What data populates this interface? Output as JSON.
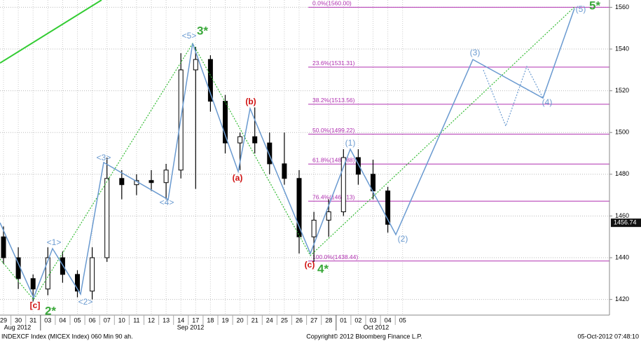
{
  "chart_data": {
    "type": "candlestick",
    "categories": [
      "29",
      "30",
      "31",
      "03",
      "04",
      "05",
      "06",
      "07",
      "10",
      "11",
      "12",
      "13",
      "14",
      "17",
      "18",
      "19",
      "20",
      "21",
      "24",
      "25",
      "26",
      "27",
      "28",
      "01",
      "02",
      "03",
      "04",
      "05"
    ],
    "open": [
      1450,
      1440,
      1430,
      1425,
      1440,
      1432,
      1424,
      1440,
      1478,
      1475,
      1477,
      1476,
      1482,
      1530,
      1535,
      1515,
      1495,
      1498,
      1495,
      1485,
      1478,
      1450,
      1458,
      1462,
      1488,
      1480,
      1472,
      null
    ],
    "high": [
      1455,
      1445,
      1432,
      1445,
      1443,
      1434,
      1445,
      1488,
      1482,
      1480,
      1482,
      1485,
      1538,
      1541,
      1537,
      1518,
      1500,
      1512,
      1500,
      1500,
      1482,
      1462,
      1468,
      1492,
      1492,
      1487,
      1474,
      null
    ],
    "low": [
      1437,
      1425,
      1419,
      1422,
      1428,
      1421,
      1420,
      1438,
      1468,
      1470,
      1472,
      1468,
      1478,
      1473,
      1510,
      1490,
      1482,
      1490,
      1480,
      1475,
      1442,
      1438,
      1450,
      1460,
      1475,
      1468,
      1452,
      null
    ],
    "close": [
      1440,
      1430,
      1425,
      1440,
      1432,
      1424,
      1440,
      1478,
      1475,
      1477,
      1476,
      1482,
      1530,
      1535,
      1515,
      1495,
      1498,
      1495,
      1485,
      1478,
      1450,
      1458,
      1462,
      1488,
      1480,
      1472,
      1456,
      null
    ],
    "color": "#000000",
    "ylim": [
      1412.5,
      1563.5
    ],
    "yticks": [
      1420,
      1440,
      1460,
      1480,
      1500,
      1520,
      1540,
      1560
    ],
    "grid": true,
    "last_price": 1456.74,
    "months": [
      "Aug 2012",
      "Sep 2012",
      "Oct 2012"
    ],
    "fib_color": "#b030b0",
    "fib_levels": [
      {
        "value": 1560,
        "label": "0.0%(1560.00)"
      },
      {
        "value": 1531.31,
        "label": "23.6%(1531.31)"
      },
      {
        "value": 1513.56,
        "label": "38.2%(1513.56)"
      },
      {
        "value": 1499.22,
        "label": "50.0%(1499.22)"
      },
      {
        "value": 1484.88,
        "label": "61.8%(1484.88)"
      },
      {
        "value": 1467.13,
        "label": "76.4%(1467.13)"
      },
      {
        "value": 1438.44,
        "label": "100.0%(1438.44)"
      }
    ],
    "annotations": [
      "[c]",
      "2*",
      "<1>",
      "<2>",
      "<3>",
      "<4>",
      "<5>",
      "3*",
      "(b)",
      "(a)",
      "(c)",
      "4*",
      "(1)",
      "(2)",
      "(3)",
      "(4)",
      "(5)",
      "5*"
    ],
    "footer": {
      "left": "INDEXCF Index (MICEX Index) 060 Min 90 ah.",
      "center": "Copyright© 2012 Bloomberg Finance L.P.",
      "right": "05-Oct-2012 07:48:10"
    }
  }
}
